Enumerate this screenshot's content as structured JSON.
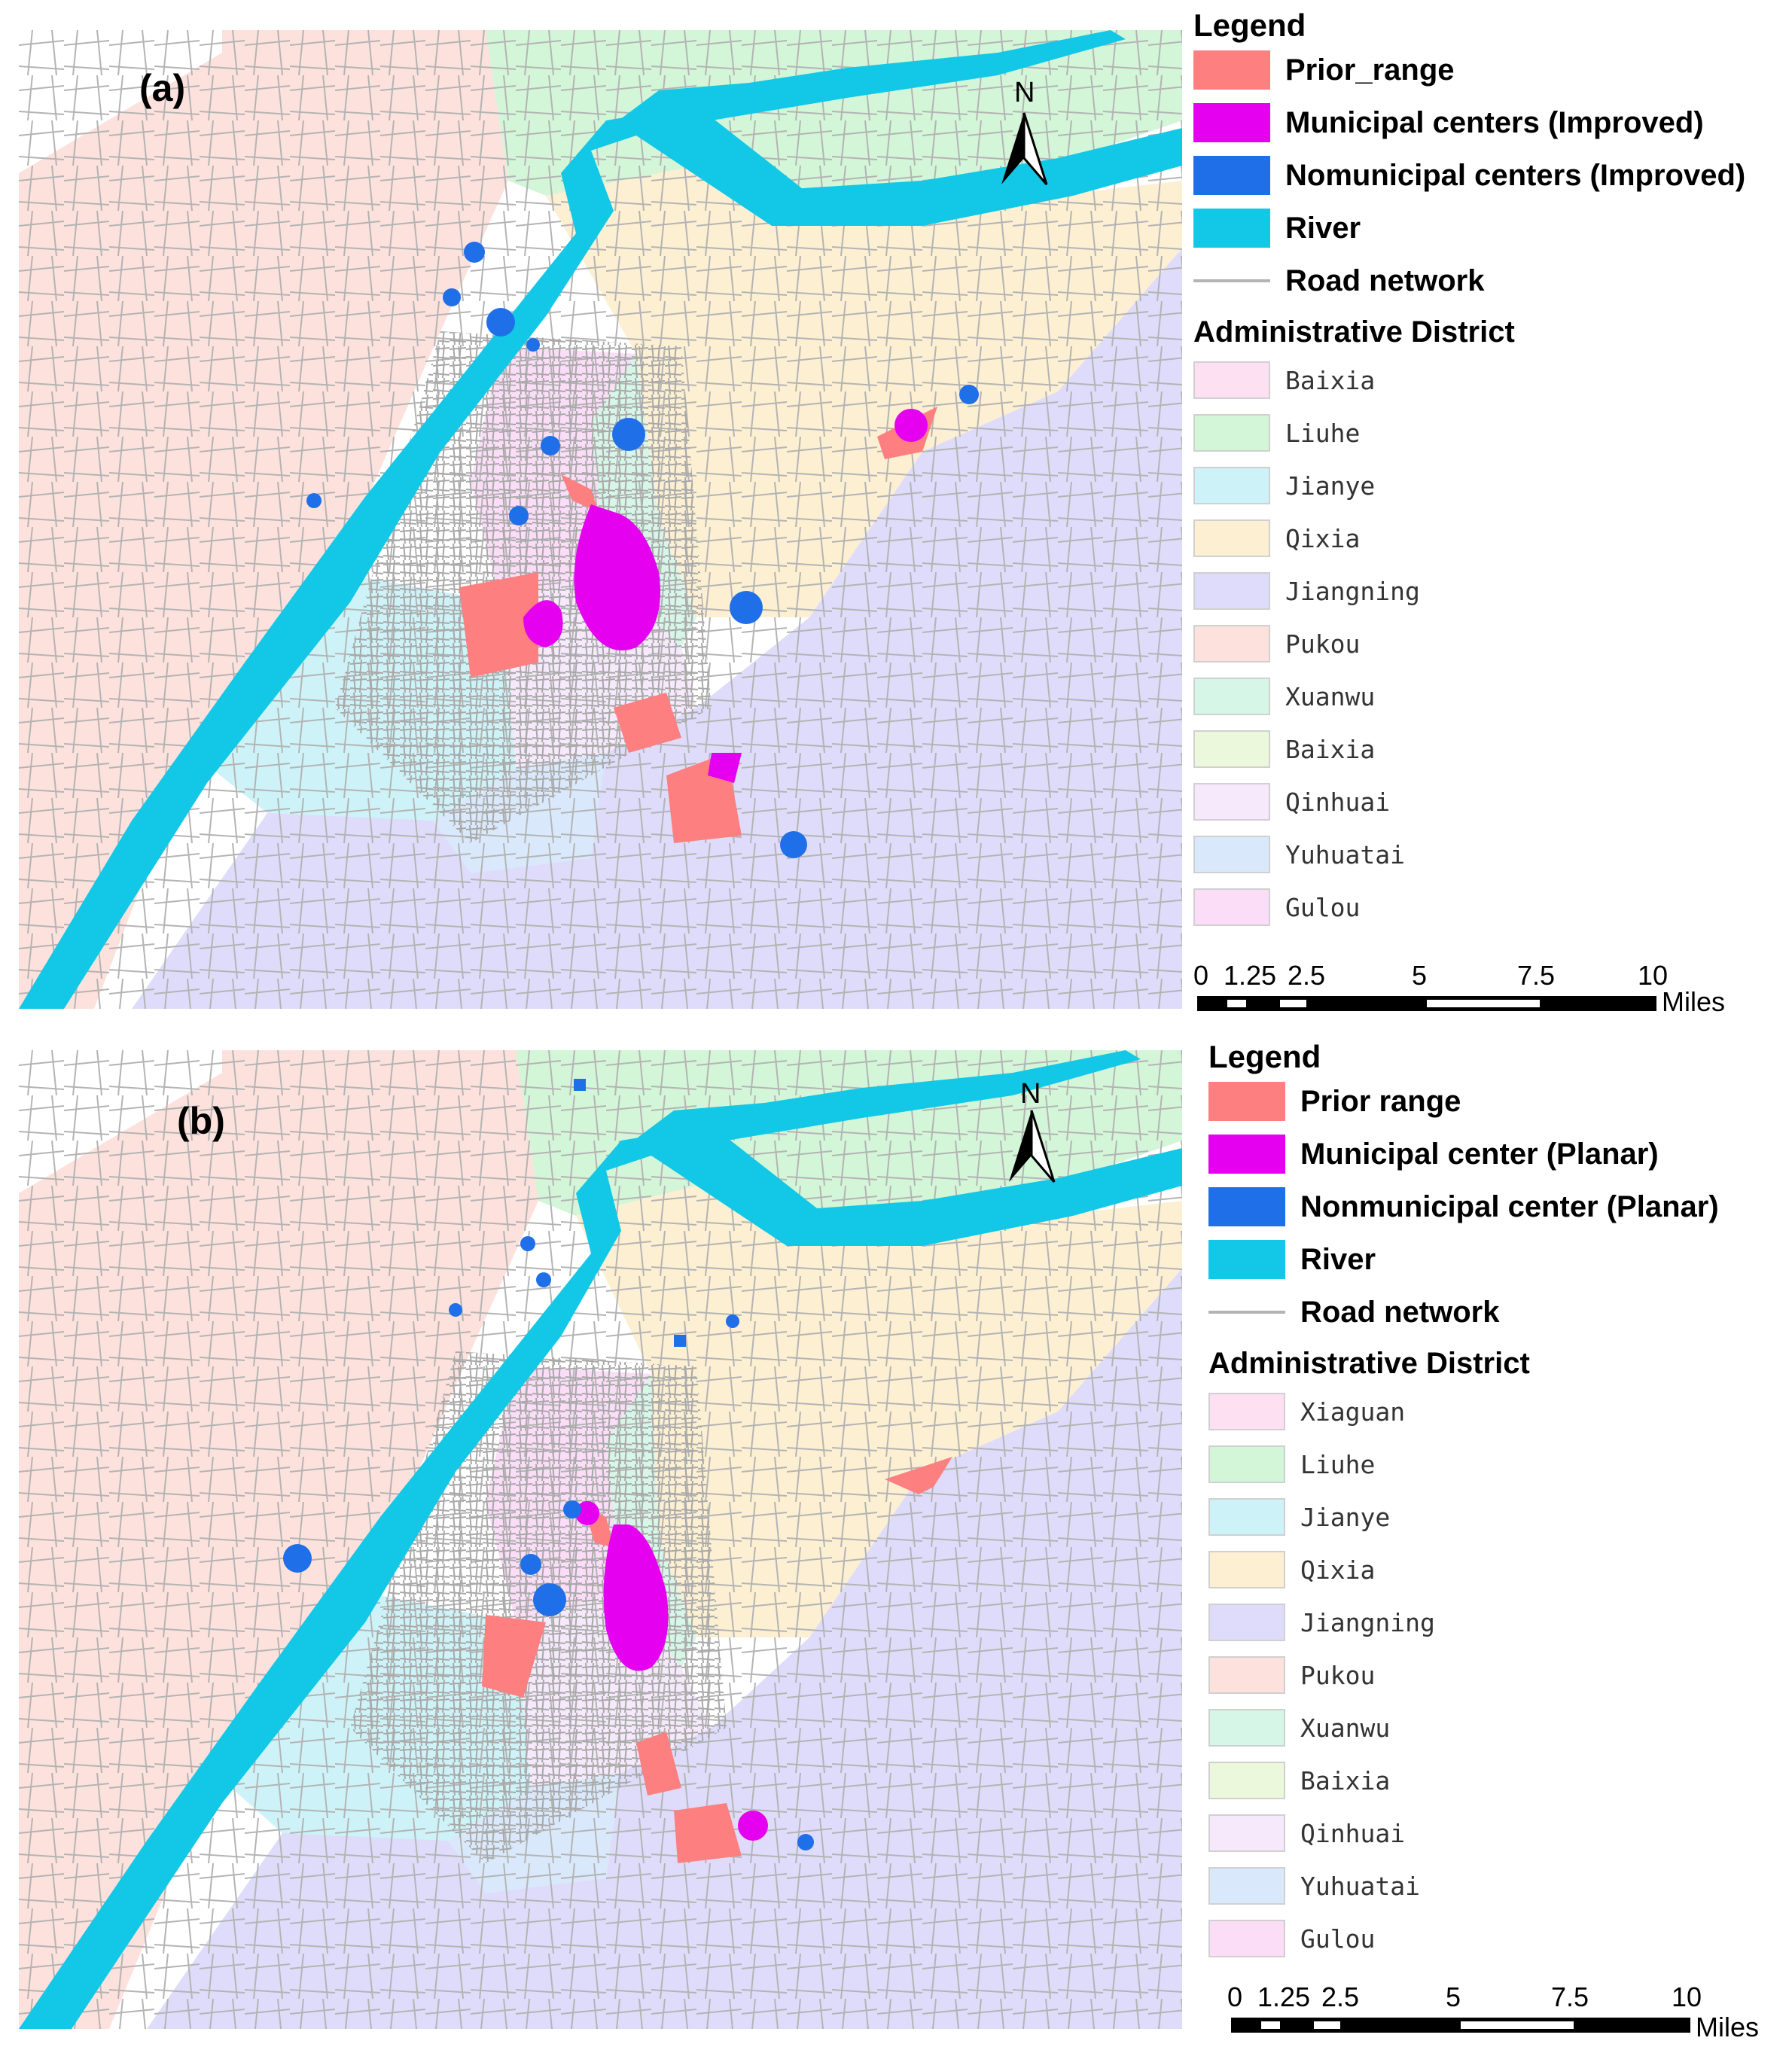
{
  "colors": {
    "prior": "#fd7f7f",
    "municipal": "#e500f0",
    "nonmunicipal": "#1f6fe8",
    "river": "#12c8e6",
    "road": "#b4b4b4",
    "districts": {
      "Baixia": "#fde0f2",
      "Liuhe": "#d3f5d8",
      "Jianye": "#cdf3f8",
      "Qixia": "#fcefd2",
      "Jiangning": "#dedcfa",
      "Pukou": "#fde1dc",
      "Xuanwu": "#d6f7e8",
      "Baixia2": "#ecf8dc",
      "Qinhuai": "#f5e9fb",
      "Yuhuatai": "#d9e9fb",
      "Gulou": "#fbddf8",
      "Xiaguan": "#fde0f2"
    }
  },
  "panel_a": {
    "label": "(a)",
    "north": "N",
    "legend_title": "Legend",
    "items": [
      "Prior_range",
      "Municipal centers (Improved)",
      "Nomunicipal centers (Improved)",
      "River",
      "Road network"
    ],
    "admin_title": "Administrative District",
    "districts": [
      "Baixia",
      "Liuhe",
      "Jianye",
      "Qixia",
      "Jiangning",
      "Pukou",
      "Xuanwu",
      "Baixia",
      "Qinhuai",
      "Yuhuatai",
      "Gulou"
    ],
    "scale_ticks": [
      "0",
      "1.25",
      "2.5",
      "5",
      "7.5",
      "10"
    ],
    "scale_unit": "Miles"
  },
  "panel_b": {
    "label": "(b)",
    "north": "N",
    "legend_title": "Legend",
    "items": [
      "Prior range",
      "Municipal center (Planar)",
      "Nonmunicipal center (Planar)",
      "River",
      "Road network"
    ],
    "admin_title": "Administrative District",
    "districts": [
      "Xiaguan",
      "Liuhe",
      "Jianye",
      "Qixia",
      "Jiangning",
      "Pukou",
      "Xuanwu",
      "Baixia",
      "Qinhuai",
      "Yuhuatai",
      "Gulou"
    ],
    "scale_ticks": [
      "0",
      "1.25",
      "2.5",
      "5",
      "7.5",
      "10"
    ],
    "scale_unit": "Miles"
  }
}
